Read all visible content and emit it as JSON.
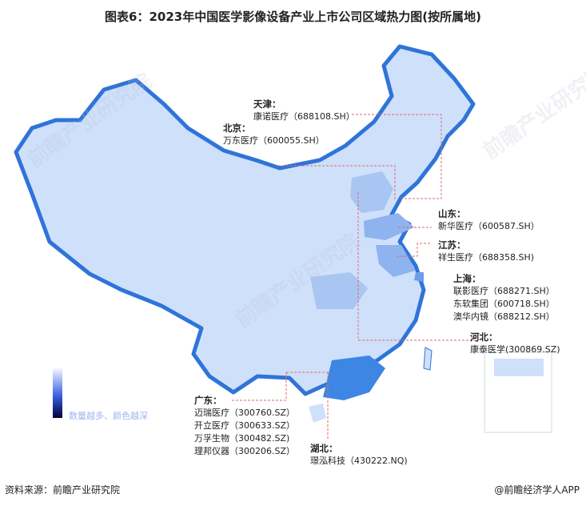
{
  "title": "图表6：2023年中国医学影像设备产业上市公司区域热力图(按所属地)",
  "legend": {
    "text": "数量越多、颜色越深",
    "gradient_colors": [
      "#f4f6ff",
      "#3a62e0",
      "#0a1560"
    ]
  },
  "colors": {
    "base_region": "#cfe0fb",
    "border": "#2f74d8",
    "medium": "#a9c5f2",
    "dark": "#3d86e3"
  },
  "regions": [
    {
      "province": "天津：",
      "companies": [
        "康诺医疗（688108.SH）"
      ]
    },
    {
      "province": "北京：",
      "companies": [
        "万东医疗（600055.SH）"
      ]
    },
    {
      "province": "山东：",
      "companies": [
        "新华医疗（600587.SH）"
      ]
    },
    {
      "province": "江苏：",
      "companies": [
        "祥生医疗（688358.SH)"
      ]
    },
    {
      "province": "上海：",
      "companies": [
        "联影医疗（688271.SH）",
        "东软集团（600718.SH）",
        "澳华内镜（688212.SH）"
      ]
    },
    {
      "province": "河北：",
      "companies": [
        "康泰医学(300869.SZ)"
      ]
    },
    {
      "province": "广东：",
      "companies": [
        "迈瑞医疗（300760.SZ）",
        "开立医疗（300633.SZ）",
        "万孚生物（300482.SZ)",
        "理邦仪器（300206.SZ）"
      ]
    },
    {
      "province": "湖北：",
      "companies": [
        "璟泓科技（430222.NQ)"
      ]
    }
  ],
  "footer": {
    "source": "资料来源：前瞻产业研究院",
    "app": "@前瞻经济学人APP"
  },
  "watermark": "前瞻产业研究院"
}
